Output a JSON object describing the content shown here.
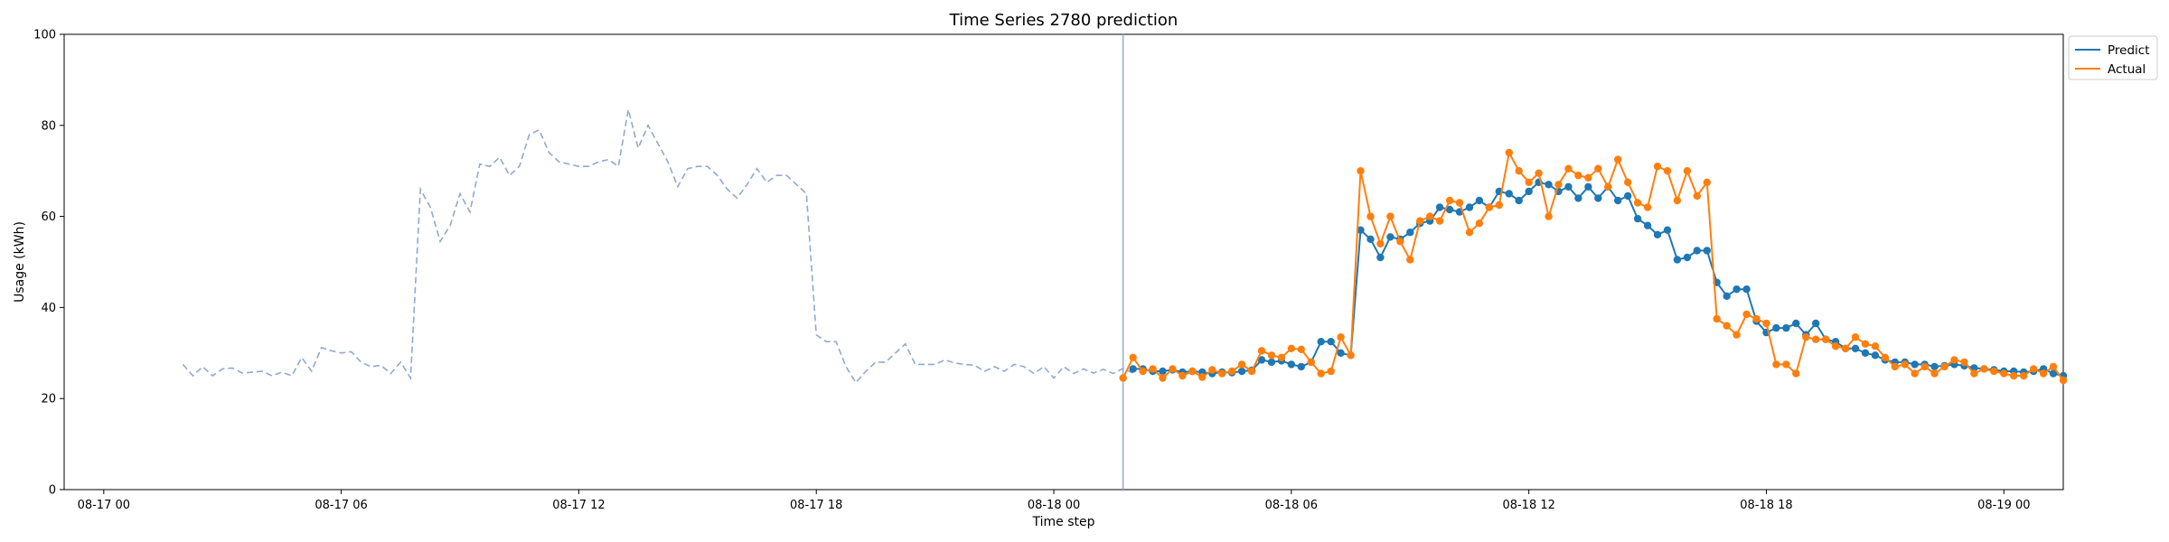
{
  "chart_data": {
    "type": "line",
    "title": "Time Series 2780 prediction",
    "xlabel": "Time step",
    "ylabel": "Usage (kWh)",
    "ylim": [
      0,
      100
    ],
    "xlim_hours": [
      -1,
      49.5
    ],
    "x_unit": "hours since 08-17 00",
    "yticks": [
      0,
      20,
      40,
      60,
      80,
      100
    ],
    "xticks": [
      {
        "hour": 0,
        "label": "08-17 00"
      },
      {
        "hour": 6,
        "label": "08-17 06"
      },
      {
        "hour": 12,
        "label": "08-17 12"
      },
      {
        "hour": 18,
        "label": "08-17 18"
      },
      {
        "hour": 24,
        "label": "08-18 00"
      },
      {
        "hour": 30,
        "label": "08-18 06"
      },
      {
        "hour": 36,
        "label": "08-18 12"
      },
      {
        "hour": 42,
        "label": "08-18 18"
      },
      {
        "hour": 48,
        "label": "08-19 00"
      }
    ],
    "step_hours": 0.25,
    "forecast_start_hour": 25.75,
    "legend": {
      "position": "outside-top-right"
    },
    "colors": {
      "predict": "#1f77b4",
      "actual": "#ff7f0e",
      "history": "#8fa9d0",
      "divider": "#8fa9d0"
    },
    "history": {
      "start_hour": 2,
      "values": [
        27.5,
        25,
        27,
        25,
        26.5,
        26.7,
        25.6,
        25.8,
        26,
        25,
        25.8,
        25,
        29,
        26,
        31.2,
        30.5,
        30,
        30.3,
        28,
        27,
        27.3,
        25.5,
        28,
        24.5,
        66,
        62,
        54.5,
        58,
        65,
        61,
        71.5,
        71,
        73,
        69,
        71,
        78,
        79,
        74,
        72,
        71.5,
        71,
        71,
        72,
        72.5,
        71,
        83.5,
        75,
        80,
        76,
        72,
        66.5,
        70.5,
        71,
        71,
        69,
        66,
        64,
        67,
        70.5,
        67.5,
        69,
        69,
        67,
        65,
        34,
        32.5,
        32.5,
        27,
        23.5,
        26,
        28,
        28,
        30,
        32,
        27.5,
        27.5,
        27.5,
        28.5,
        27.8,
        27.5,
        27.3,
        26,
        27,
        26,
        27.5,
        27,
        25.5,
        27,
        24.5,
        27,
        25.5,
        26.5,
        25.6,
        26.4,
        25.5,
        26.6,
        25.6
      ]
    },
    "series": [
      {
        "name": "Predict",
        "start_hour": 26,
        "values": [
          26.5,
          26.5,
          26,
          26,
          26.3,
          25.8,
          26,
          25.8,
          25.5,
          25.8,
          25.7,
          26,
          26.2,
          28.5,
          28,
          28.3,
          27.5,
          27,
          28,
          32.5,
          32.5,
          30,
          29.5,
          57,
          55,
          51,
          55.5,
          55,
          56.5,
          58.5,
          59,
          62,
          61.5,
          61,
          62,
          63.5,
          62,
          65.5,
          65,
          63.5,
          65.5,
          67.5,
          67,
          65.5,
          66.5,
          64,
          66.5,
          64,
          66.5,
          63.5,
          64.5,
          59.5,
          58,
          56,
          57,
          50.5,
          51,
          52.5,
          52.5,
          45.5,
          42.5,
          44,
          44,
          37,
          34.5,
          35.5,
          35.5,
          36.5,
          34,
          36.5,
          33,
          32.5,
          31,
          31,
          30,
          29.5,
          28.5,
          28,
          28,
          27.5,
          27.5,
          27,
          27.2,
          27.5,
          27.2,
          26.7,
          26.5,
          26.3,
          26,
          26,
          25.8,
          26,
          26.5,
          25.5,
          25
        ]
      },
      {
        "name": "Actual",
        "start_hour": 25.75,
        "values": [
          24.5,
          29,
          26,
          26.5,
          24.5,
          26.5,
          25,
          26,
          24.7,
          26.3,
          25.5,
          26,
          27.5,
          26,
          30.5,
          29.5,
          29,
          31,
          30.8,
          28,
          25.5,
          26,
          33.5,
          29.5,
          70,
          60,
          54,
          60,
          54.5,
          50.5,
          59,
          60,
          59,
          63.5,
          63,
          56.5,
          58.5,
          62,
          62.5,
          74,
          70,
          67.5,
          69.5,
          60,
          67,
          70.5,
          69,
          68.5,
          70.5,
          66.5,
          72.5,
          67.5,
          63,
          62,
          71,
          70,
          63.5,
          70,
          64.5,
          67.5,
          37.5,
          36,
          34,
          38.5,
          37.5,
          36.5,
          27.5,
          27.5,
          25.5,
          33.5,
          33,
          33,
          31.5,
          31,
          33.5,
          32,
          31.5,
          29,
          27,
          27.5,
          25.5,
          27,
          25.5,
          27,
          28.5,
          28,
          25.5,
          26.5,
          26,
          25.5,
          25,
          25,
          26.5,
          25.5,
          27,
          24
        ]
      }
    ]
  }
}
